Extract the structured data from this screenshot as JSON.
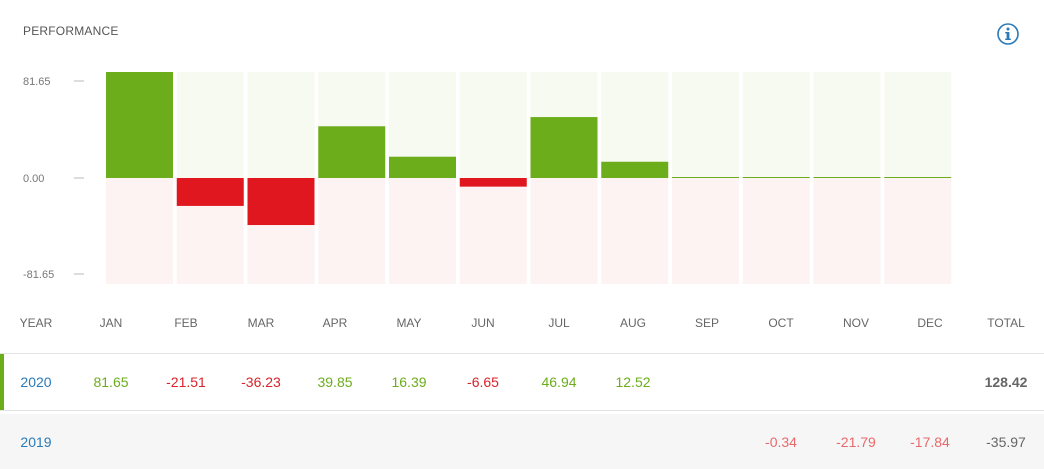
{
  "title": "PERFORMANCE",
  "info_icon": "info-circle-icon",
  "colors": {
    "positive": "#6cad1c",
    "negative": "#e0171e",
    "positive_bg": "#f7faf1",
    "negative_bg": "#fdf3f3",
    "link": "#2a7ab8"
  },
  "chart_data": {
    "type": "bar",
    "categories": [
      "JAN",
      "FEB",
      "MAR",
      "APR",
      "MAY",
      "JUN",
      "JUL",
      "AUG",
      "SEP",
      "OCT",
      "NOV",
      "DEC"
    ],
    "values": [
      81.65,
      -21.51,
      -36.23,
      39.85,
      16.39,
      -6.65,
      46.94,
      12.52,
      0,
      0,
      0,
      0
    ],
    "ylim": [
      -81.65,
      81.65
    ],
    "yticks": [
      "81.65",
      "0.00",
      "-81.65"
    ]
  },
  "table": {
    "year_header": "YEAR",
    "month_headers": [
      "JAN",
      "FEB",
      "MAR",
      "APR",
      "MAY",
      "JUN",
      "JUL",
      "AUG",
      "SEP",
      "OCT",
      "NOV",
      "DEC"
    ],
    "total_header": "TOTAL",
    "rows": [
      {
        "year": "2020",
        "months": [
          "81.65",
          "-21.51",
          "-36.23",
          "39.85",
          "16.39",
          "-6.65",
          "46.94",
          "12.52",
          "",
          "",
          "",
          ""
        ],
        "total": "128.42"
      },
      {
        "year": "2019",
        "months": [
          "",
          "",
          "",
          "",
          "",
          "",
          "",
          "",
          "",
          "-0.34",
          "-21.79",
          "-17.84"
        ],
        "total": "-35.97"
      }
    ]
  }
}
